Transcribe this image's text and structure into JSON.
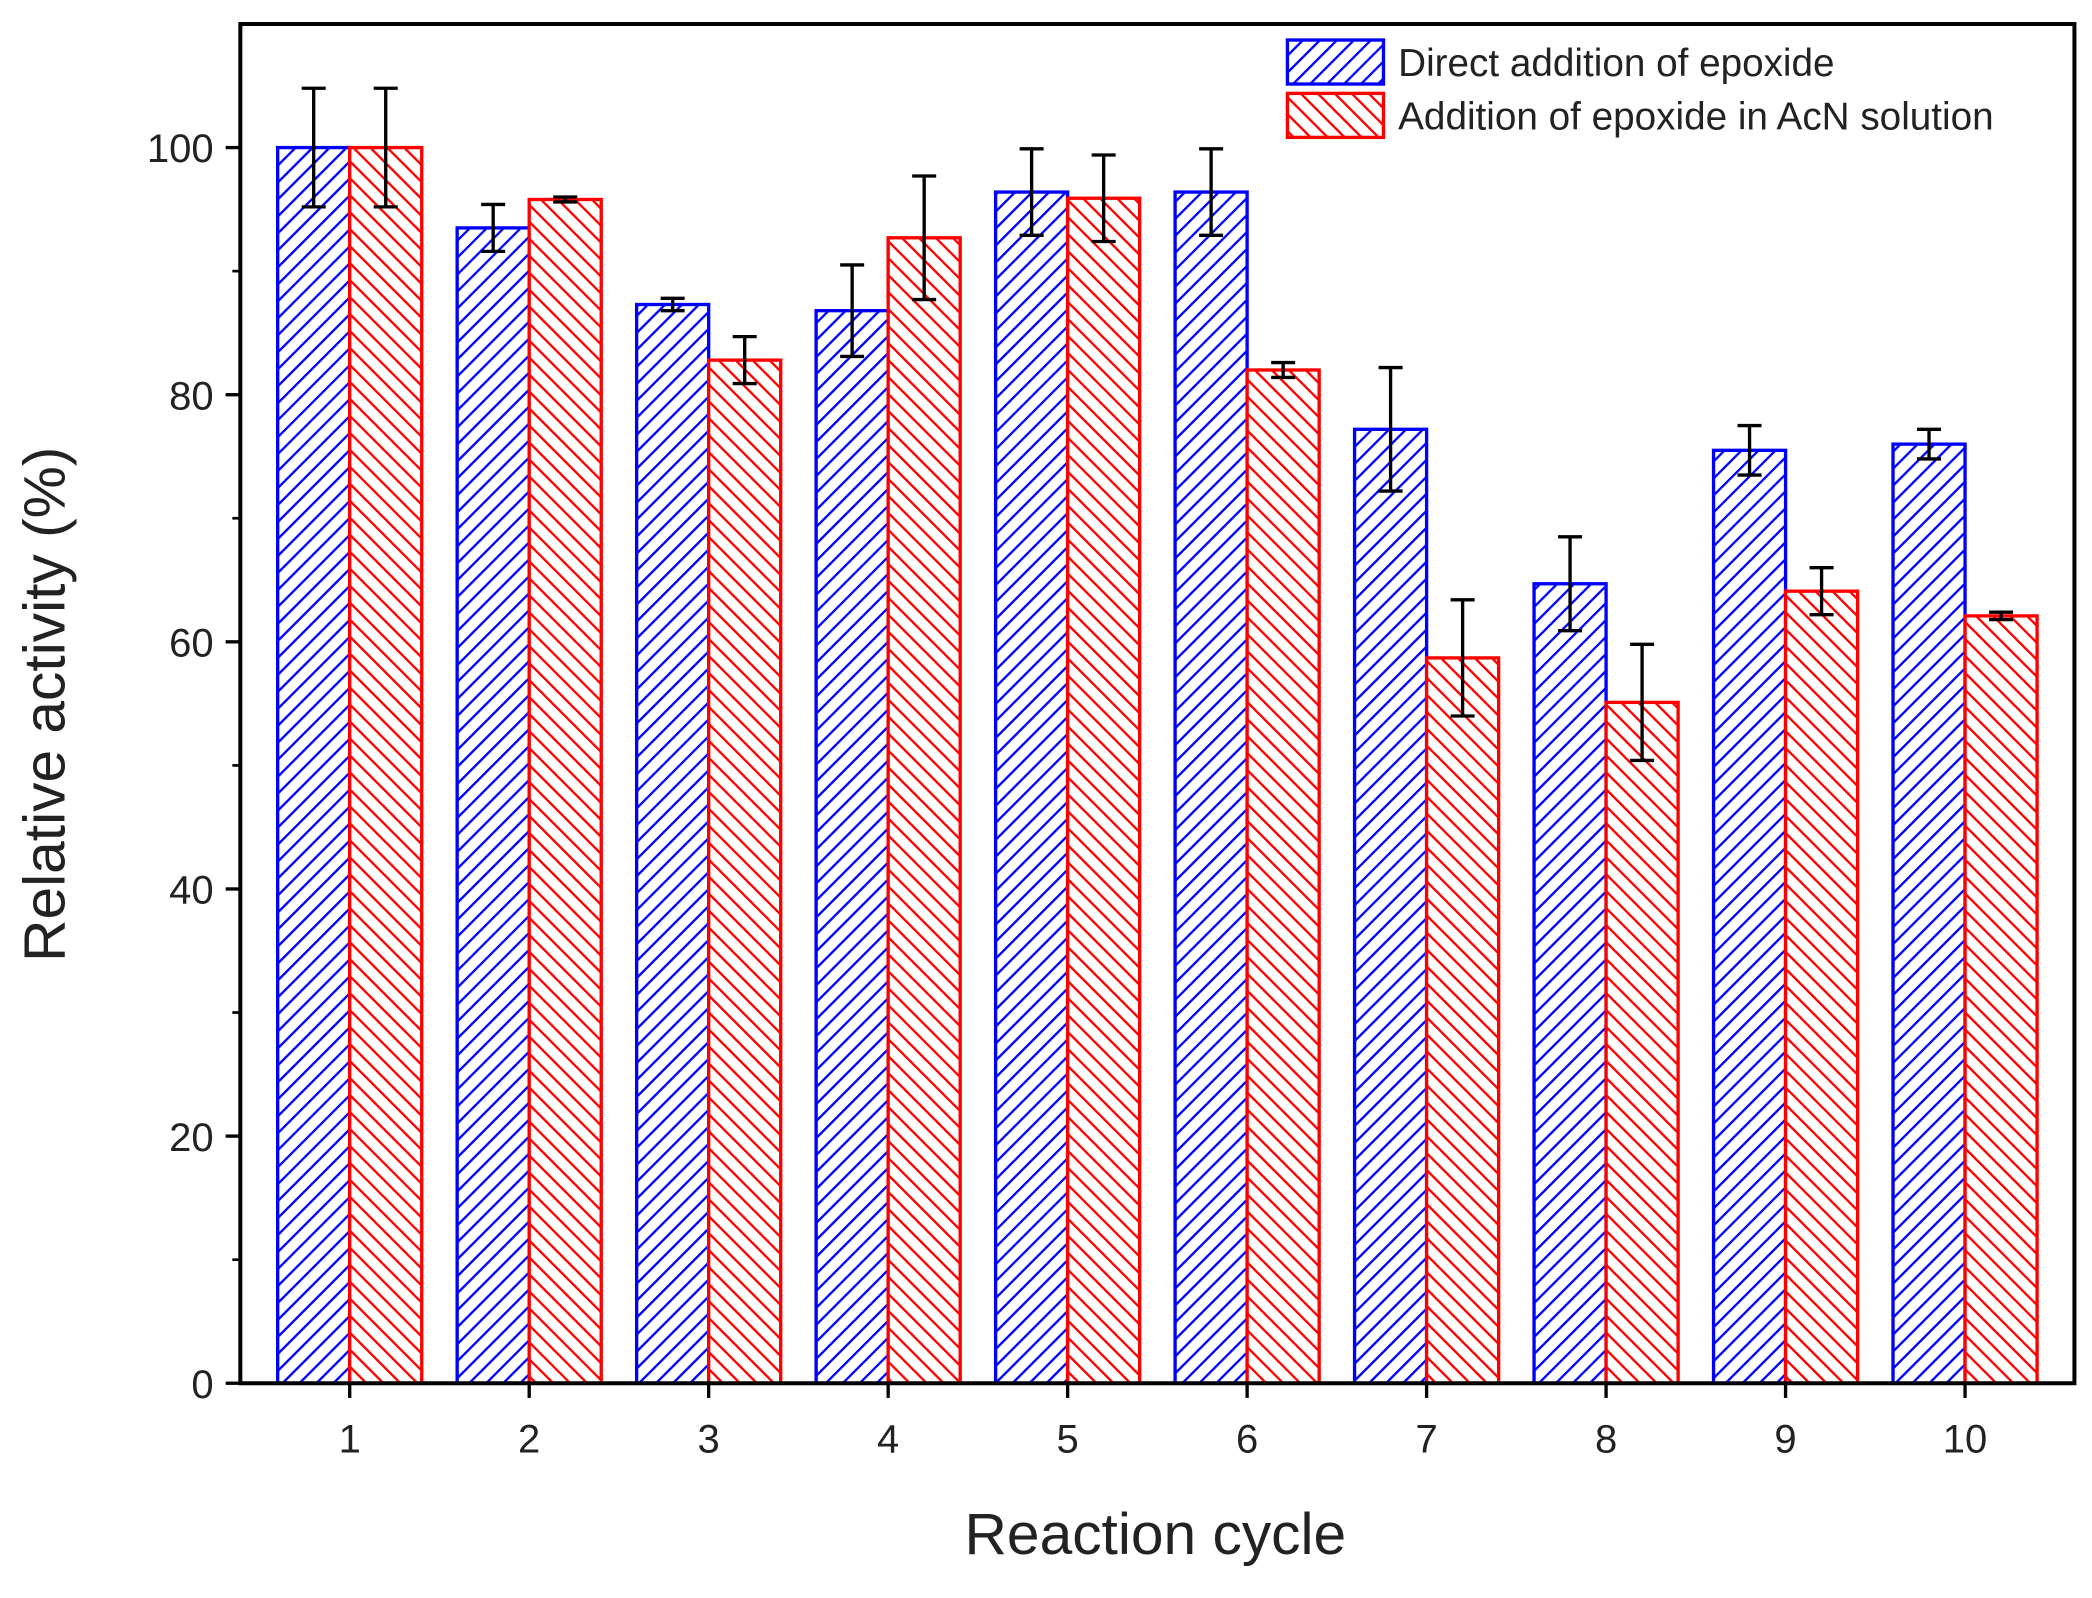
{
  "chart_data": {
    "type": "bar",
    "x_label": "Reaction cycle",
    "y_label": "Relative activity (%)",
    "categories": [
      "1",
      "2",
      "3",
      "4",
      "5",
      "6",
      "7",
      "8",
      "9",
      "10"
    ],
    "series": [
      {
        "name": "Direct addition of epoxide",
        "color": "#0000ff",
        "hatch": "/",
        "values": [
          100,
          93.5,
          87.3,
          86.8,
          96.4,
          96.4,
          77.2,
          64.7,
          75.5,
          76
        ],
        "errors": [
          4.8,
          1.9,
          0.5,
          3.7,
          3.5,
          3.5,
          5,
          3.8,
          2,
          1.2
        ]
      },
      {
        "name": "Addition of epoxide in AcN solution",
        "color": "#ff0000",
        "hatch": "\\",
        "values": [
          100,
          95.8,
          82.8,
          92.7,
          95.9,
          82,
          58.7,
          55.1,
          64.1,
          62.1
        ],
        "errors": [
          4.8,
          0.2,
          1.9,
          5,
          3.5,
          0.6,
          4.7,
          4.7,
          1.9,
          0.3
        ]
      }
    ],
    "ylim": [
      0,
      110
    ],
    "yticks": [
      0,
      20,
      40,
      60,
      80,
      100
    ],
    "yticks_minor": [
      10,
      30,
      50,
      70,
      90
    ],
    "grid": false,
    "legend": "upper right"
  }
}
